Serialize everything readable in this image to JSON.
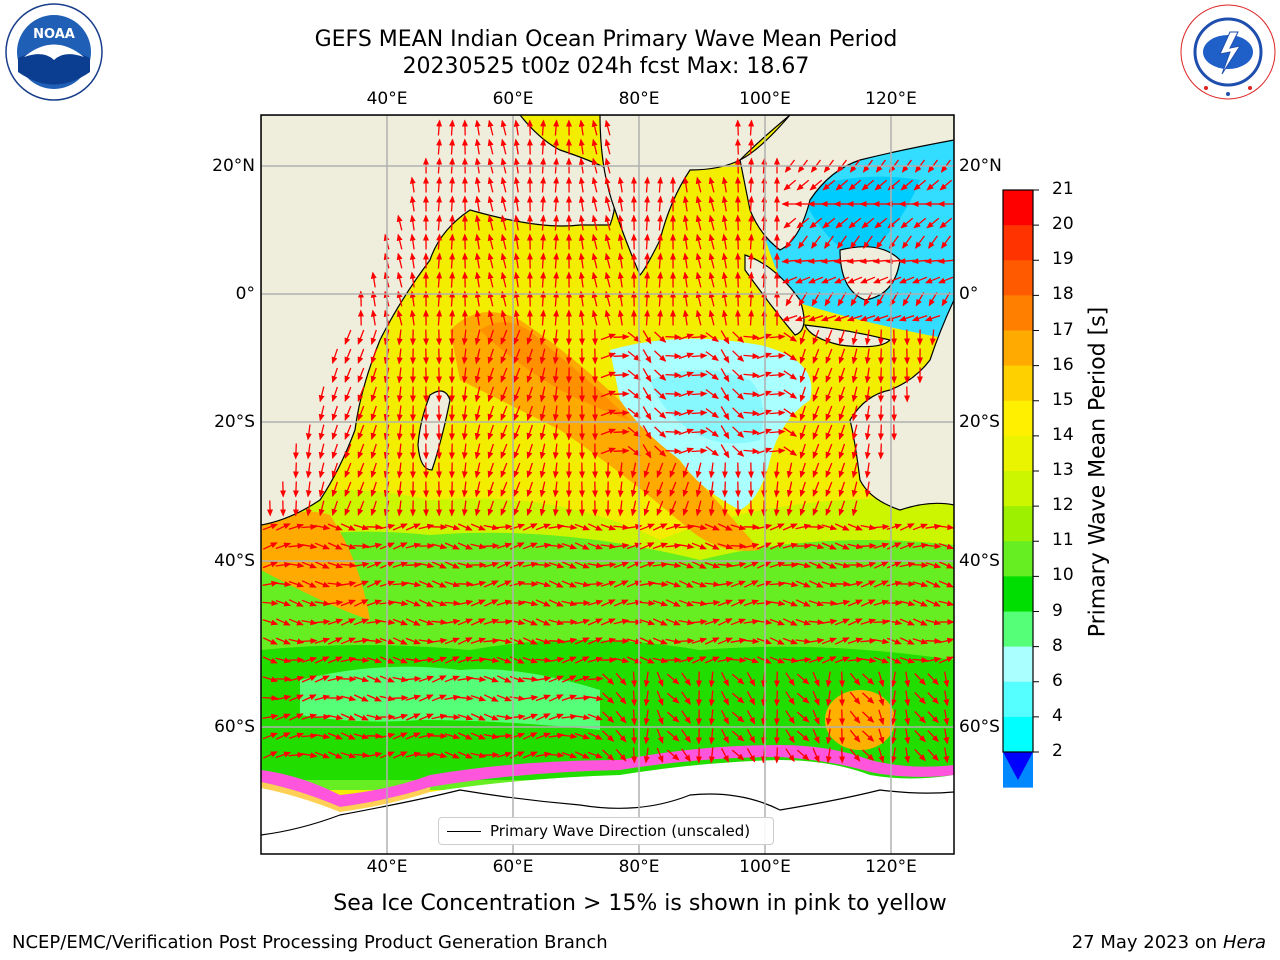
{
  "header": {
    "title_line1": "GEFS MEAN Indian Ocean Primary Wave Mean Period",
    "title_line2": "20230525 t00z 024h fcst   Max: 18.67"
  },
  "logos": {
    "left": {
      "name": "noaa-logo",
      "text": "NOAA",
      "ring_text": "NATIONAL OCEANIC AND ATMOSPHERIC ADMINISTRATION · U.S. DEPARTMENT OF COMMERCE"
    },
    "right": {
      "name": "nws-logo",
      "ring_text": "NATIONAL WEATHER SERVICE"
    }
  },
  "map": {
    "top_lon_labels": [
      "40°E",
      "60°E",
      "80°E",
      "100°E",
      "120°E"
    ],
    "bottom_lon_labels": [
      "40°E",
      "60°E",
      "80°E",
      "100°E",
      "120°E"
    ],
    "left_lat_labels": [
      "20°N",
      "0°",
      "20°S",
      "40°S",
      "60°S"
    ],
    "right_lat_labels": [
      "20°N",
      "0°",
      "20°S",
      "40°S",
      "60°S"
    ],
    "lon_range": [
      20,
      130
    ],
    "lat_range": [
      -75,
      28
    ],
    "legend_label": "Primary Wave Direction (unscaled)",
    "colors": {
      "land": "#efeedd",
      "ice": "#ffffff",
      "ocean_base": "#f3ee00",
      "arrow": "#ff0000",
      "grid": "#b0b0b0"
    }
  },
  "colorbar": {
    "title": "Primary Wave Mean Period [s]",
    "ticks": [
      "21",
      "20",
      "19",
      "18",
      "17",
      "16",
      "15",
      "14",
      "13",
      "12",
      "11",
      "10",
      "9",
      "8",
      "6",
      "4",
      "2"
    ],
    "colors_top_to_bottom": [
      "#ff0000",
      "#ff3300",
      "#ff5a00",
      "#ff8000",
      "#ffaa00",
      "#ffd000",
      "#fff000",
      "#eaf300",
      "#ccf500",
      "#9cf000",
      "#66ee22",
      "#00dd00",
      "#55ff77",
      "#aaffff",
      "#55ffff",
      "#00ffff",
      "#0088ff"
    ],
    "extend_color": "#0000ff"
  },
  "footer": {
    "note": "Sea Ice Concentration > 15% is shown in pink to yellow",
    "credit": "NCEP/EMC/Verification Post Processing Product Generation Branch",
    "date": "27 May 2023 on",
    "host": "Hera"
  }
}
